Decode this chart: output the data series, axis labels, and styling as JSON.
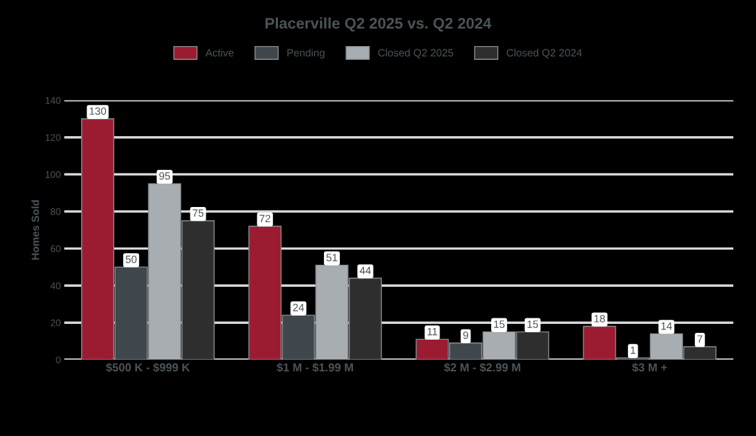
{
  "chart_data": {
    "type": "bar",
    "title": "Placerville Q2 2025 vs. Q2 2024",
    "ylabel": "Homes Sold",
    "categories": [
      "$500 K - $999 K",
      "$1 M - $1.99 M",
      "$2 M - $2.99 M",
      "$3 M +"
    ],
    "series": [
      {
        "name": "Active",
        "color": "#9b1c31",
        "values": [
          130,
          72,
          11,
          18
        ]
      },
      {
        "name": "Pending",
        "color": "#3f474c",
        "values": [
          50,
          24,
          9,
          1
        ]
      },
      {
        "name": "Closed Q2 2025",
        "color": "#a7adb1",
        "values": [
          95,
          51,
          15,
          14
        ]
      },
      {
        "name": "Closed Q2 2024",
        "color": "#2e2e2e",
        "values": [
          75,
          44,
          15,
          7
        ]
      }
    ],
    "ylim": [
      0,
      140
    ],
    "yticks": [
      0,
      20,
      40,
      60,
      80,
      100,
      120,
      140
    ],
    "grid": "y",
    "legend": "top",
    "data_labels": true
  }
}
